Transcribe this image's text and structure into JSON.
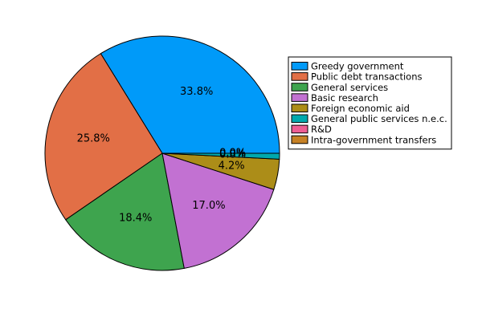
{
  "chart_data": {
    "type": "pie",
    "title": "",
    "start_angle_deg": 0,
    "direction": "counterclockwise",
    "legend_position": "right",
    "slices": [
      {
        "label": "Greedy government",
        "value": 33.8,
        "value_label": "33.8%",
        "color": "#009AF9"
      },
      {
        "label": "Public debt transactions",
        "value": 25.8,
        "value_label": "25.8%",
        "color": "#E26F46"
      },
      {
        "label": "General services",
        "value": 18.4,
        "value_label": "18.4%",
        "color": "#3EA44E"
      },
      {
        "label": "Basic research",
        "value": 17.0,
        "value_label": "17.0%",
        "color": "#C271D2"
      },
      {
        "label": "Foreign economic aid",
        "value": 4.2,
        "value_label": "4.2%",
        "color": "#AC8D18"
      },
      {
        "label": "General public services n.e.c.",
        "value": 0.8,
        "value_label": "0.8%",
        "color": "#00A9AD"
      },
      {
        "label": "R&D",
        "value": 0.0,
        "value_label": "0.0%",
        "color": "#ED5E93"
      },
      {
        "label": "Intra-government transfers",
        "value": 0.0,
        "value_label": "0.0%",
        "color": "#C68125"
      }
    ]
  }
}
